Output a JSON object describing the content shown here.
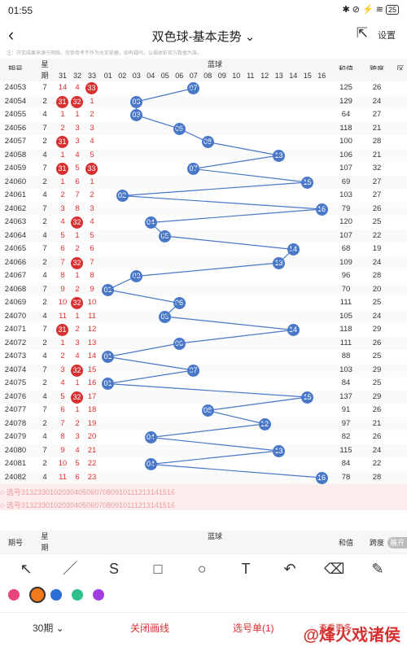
{
  "status": {
    "time": "01:55",
    "icons": "✱ ⊘ ⚡ ≋",
    "battery": "25"
  },
  "header": {
    "title": "双色球-基本走势 ⌄",
    "settings": "设置"
  },
  "notice": "注：开奖结果来源于网络，仅供参考不作为兑奖依据，如有疑问，以福体彩官方数据为准。",
  "columns": {
    "issue": "期号",
    "week_top": "星",
    "week_bottom": "期",
    "red_nums": [
      "31",
      "32",
      "33"
    ],
    "blue_group": "蓝球",
    "blue_nums": [
      "01",
      "02",
      "03",
      "04",
      "05",
      "06",
      "07",
      "08",
      "09",
      "10",
      "11",
      "12",
      "13",
      "14",
      "15",
      "16"
    ],
    "sum": "和值",
    "span": "跨度",
    "extra": "区"
  },
  "rows": [
    {
      "issue": "24053",
      "w": "7",
      "r": [
        "14",
        "4",
        "33"
      ],
      "rb": [
        false,
        false,
        true
      ],
      "b": "07",
      "sum": "125",
      "span": "26"
    },
    {
      "issue": "24054",
      "w": "2",
      "r": [
        "31",
        "32",
        "1"
      ],
      "rb": [
        true,
        true,
        false
      ],
      "b": "03",
      "sum": "129",
      "span": "24"
    },
    {
      "issue": "24055",
      "w": "4",
      "r": [
        "1",
        "1",
        "2"
      ],
      "rb": [
        false,
        false,
        false
      ],
      "b": "03",
      "sum": "64",
      "span": "27"
    },
    {
      "issue": "24056",
      "w": "7",
      "r": [
        "2",
        "3",
        "3"
      ],
      "rb": [
        false,
        false,
        false
      ],
      "b": "06",
      "sum": "118",
      "span": "21"
    },
    {
      "issue": "24057",
      "w": "2",
      "r": [
        "31",
        "3",
        "4"
      ],
      "rb": [
        true,
        false,
        false
      ],
      "b": "08",
      "sum": "100",
      "span": "28"
    },
    {
      "issue": "24058",
      "w": "4",
      "r": [
        "1",
        "4",
        "5"
      ],
      "rb": [
        false,
        false,
        false
      ],
      "b": "13",
      "sum": "106",
      "span": "21"
    },
    {
      "issue": "24059",
      "w": "7",
      "r": [
        "31",
        "5",
        "33"
      ],
      "rb": [
        true,
        false,
        true
      ],
      "b": "07",
      "sum": "107",
      "span": "32"
    },
    {
      "issue": "24060",
      "w": "2",
      "r": [
        "1",
        "6",
        "1"
      ],
      "rb": [
        false,
        false,
        false
      ],
      "b": "15",
      "sum": "69",
      "span": "27"
    },
    {
      "issue": "24061",
      "w": "4",
      "r": [
        "2",
        "7",
        "2"
      ],
      "rb": [
        false,
        false,
        false
      ],
      "b": "02",
      "sum": "103",
      "span": "27"
    },
    {
      "issue": "24062",
      "w": "7",
      "r": [
        "3",
        "8",
        "3"
      ],
      "rb": [
        false,
        false,
        false
      ],
      "b": "16",
      "sum": "79",
      "span": "26"
    },
    {
      "issue": "24063",
      "w": "2",
      "r": [
        "4",
        "32",
        "4"
      ],
      "rb": [
        false,
        true,
        false
      ],
      "b": "04",
      "sum": "120",
      "span": "25"
    },
    {
      "issue": "24064",
      "w": "4",
      "r": [
        "5",
        "1",
        "5"
      ],
      "rb": [
        false,
        false,
        false
      ],
      "b": "05",
      "sum": "107",
      "span": "22"
    },
    {
      "issue": "24065",
      "w": "7",
      "r": [
        "6",
        "2",
        "6"
      ],
      "rb": [
        false,
        false,
        false
      ],
      "b": "14",
      "sum": "68",
      "span": "19"
    },
    {
      "issue": "24066",
      "w": "2",
      "r": [
        "7",
        "32",
        "7"
      ],
      "rb": [
        false,
        true,
        false
      ],
      "b": "13",
      "sum": "109",
      "span": "24"
    },
    {
      "issue": "24067",
      "w": "4",
      "r": [
        "8",
        "1",
        "8"
      ],
      "rb": [
        false,
        false,
        false
      ],
      "b": "03",
      "sum": "96",
      "span": "28"
    },
    {
      "issue": "24068",
      "w": "7",
      "r": [
        "9",
        "2",
        "9"
      ],
      "rb": [
        false,
        false,
        false
      ],
      "b": "01",
      "sum": "70",
      "span": "20"
    },
    {
      "issue": "24069",
      "w": "2",
      "r": [
        "10",
        "32",
        "10"
      ],
      "rb": [
        false,
        true,
        false
      ],
      "b": "06",
      "sum": "111",
      "span": "25"
    },
    {
      "issue": "24070",
      "w": "4",
      "r": [
        "11",
        "1",
        "11"
      ],
      "rb": [
        false,
        false,
        false
      ],
      "b": "05",
      "sum": "105",
      "span": "24"
    },
    {
      "issue": "24071",
      "w": "7",
      "r": [
        "31",
        "2",
        "12"
      ],
      "rb": [
        true,
        false,
        false
      ],
      "b": "14",
      "sum": "118",
      "span": "29"
    },
    {
      "issue": "24072",
      "w": "2",
      "r": [
        "1",
        "3",
        "13"
      ],
      "rb": [
        false,
        false,
        false
      ],
      "b": "06",
      "sum": "111",
      "span": "26"
    },
    {
      "issue": "24073",
      "w": "4",
      "r": [
        "2",
        "4",
        "14"
      ],
      "rb": [
        false,
        false,
        false
      ],
      "b": "01",
      "sum": "88",
      "span": "25"
    },
    {
      "issue": "24074",
      "w": "7",
      "r": [
        "3",
        "32",
        "15"
      ],
      "rb": [
        false,
        true,
        false
      ],
      "b": "07",
      "sum": "103",
      "span": "29"
    },
    {
      "issue": "24075",
      "w": "2",
      "r": [
        "4",
        "1",
        "16"
      ],
      "rb": [
        false,
        false,
        false
      ],
      "b": "01",
      "sum": "84",
      "span": "25"
    },
    {
      "issue": "24076",
      "w": "4",
      "r": [
        "5",
        "32",
        "17"
      ],
      "rb": [
        false,
        true,
        false
      ],
      "b": "15",
      "sum": "137",
      "span": "29"
    },
    {
      "issue": "24077",
      "w": "7",
      "r": [
        "6",
        "1",
        "18"
      ],
      "rb": [
        false,
        false,
        false
      ],
      "b": "08",
      "sum": "91",
      "span": "26"
    },
    {
      "issue": "24078",
      "w": "2",
      "r": [
        "7",
        "2",
        "19"
      ],
      "rb": [
        false,
        false,
        false
      ],
      "b": "12",
      "sum": "97",
      "span": "21"
    },
    {
      "issue": "24079",
      "w": "4",
      "r": [
        "8",
        "3",
        "20"
      ],
      "rb": [
        false,
        false,
        false
      ],
      "b": "04",
      "sum": "82",
      "span": "26"
    },
    {
      "issue": "24080",
      "w": "7",
      "r": [
        "9",
        "4",
        "21"
      ],
      "rb": [
        false,
        false,
        false
      ],
      "b": "13",
      "sum": "115",
      "span": "24"
    },
    {
      "issue": "24081",
      "w": "2",
      "r": [
        "10",
        "5",
        "22"
      ],
      "rb": [
        false,
        false,
        false
      ],
      "b": "04",
      "sum": "84",
      "span": "22"
    },
    {
      "issue": "24082",
      "w": "4",
      "r": [
        "11",
        "6",
        "23"
      ],
      "rb": [
        false,
        false,
        false
      ],
      "b": "16",
      "sum": "78",
      "span": "28"
    }
  ],
  "select_rows": [
    {
      "label": "○ 选号",
      "nums": [
        "31",
        "32",
        "33",
        "01",
        "02",
        "03",
        "04",
        "05",
        "06",
        "07",
        "08",
        "09",
        "10",
        "11",
        "12",
        "13",
        "14",
        "15",
        "16"
      ]
    },
    {
      "label": "○ 选号",
      "nums": [
        "31",
        "32",
        "33",
        "01",
        "02",
        "03",
        "04",
        "05",
        "06",
        "07",
        "08",
        "09",
        "10",
        "11",
        "12",
        "13",
        "14",
        "15",
        "16"
      ]
    }
  ],
  "chart_data": {
    "type": "line",
    "title": "双色球-基本走势",
    "categories": [
      "24053",
      "24054",
      "24055",
      "24056",
      "24057",
      "24058",
      "24059",
      "24060",
      "24061",
      "24062",
      "24063",
      "24064",
      "24065",
      "24066",
      "24067",
      "24068",
      "24069",
      "24070",
      "24071",
      "24072",
      "24073",
      "24074",
      "24075",
      "24076",
      "24077",
      "24078",
      "24079",
      "24080",
      "24081",
      "24082"
    ],
    "series": [
      {
        "name": "蓝球",
        "values": [
          7,
          3,
          3,
          6,
          8,
          13,
          7,
          15,
          2,
          16,
          4,
          5,
          14,
          13,
          3,
          1,
          6,
          5,
          14,
          6,
          1,
          7,
          1,
          15,
          8,
          12,
          4,
          13,
          4,
          16
        ]
      }
    ]
  },
  "footer_header": {
    "issue": "期号",
    "week_top": "星",
    "week_bottom": "期",
    "blue_group": "蓝球",
    "sum": "和值",
    "span": "跨度",
    "expand": "展开"
  },
  "tools": [
    "↖",
    "／",
    "S",
    "□",
    "○",
    "T",
    "↶",
    "⌫",
    "✎"
  ],
  "colors": [
    "#e8457a",
    "#f07a1a",
    "#2b6fd6",
    "#2fbf8a",
    "#a23ee0"
  ],
  "bottom": {
    "periods": "30期 ⌄",
    "close": "关闭画线",
    "select": "选号单(1)",
    "more": "查看更多"
  },
  "watermark": "@烽火戏诸侯"
}
